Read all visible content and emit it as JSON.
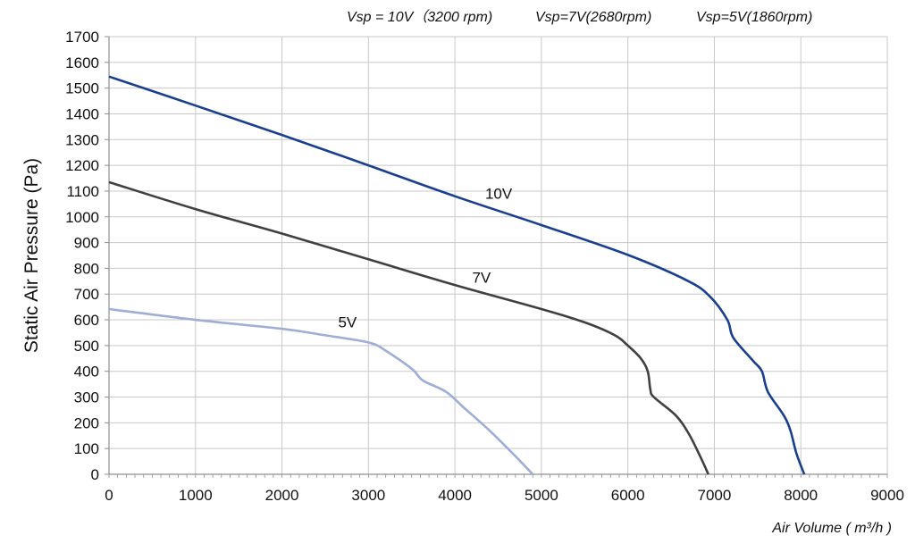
{
  "chart_data": {
    "type": "line",
    "title_parts": [
      "Vsp = 10V（3200 rpm)",
      "Vsp=7V(2680rpm)",
      "Vsp=5V(1860rpm)"
    ],
    "xlabel": "Air Volume ( m³/h )",
    "ylabel": "Static Air Pressure  (Pa)",
    "xlim": [
      0,
      9000
    ],
    "ylim": [
      0,
      1700
    ],
    "xticks": [
      "0",
      "1000",
      "2000",
      "3000",
      "4000",
      "5000",
      "6000",
      "7000",
      "8000",
      "9000"
    ],
    "yticks": [
      "0",
      "100",
      "200",
      "300",
      "400",
      "500",
      "600",
      "700",
      "800",
      "900",
      "1000",
      "1100",
      "1200",
      "1300",
      "1400",
      "1500",
      "1600",
      "1700"
    ],
    "grid": true,
    "series": [
      {
        "name": "10V",
        "color": "#1a3f8f",
        "points": [
          [
            0,
            1545
          ],
          [
            1000,
            1432
          ],
          [
            2000,
            1318
          ],
          [
            3000,
            1200
          ],
          [
            4000,
            1080
          ],
          [
            5000,
            968
          ],
          [
            6000,
            852
          ],
          [
            6700,
            750
          ],
          [
            6950,
            690
          ],
          [
            7150,
            600
          ],
          [
            7220,
            530
          ],
          [
            7450,
            440
          ],
          [
            7550,
            400
          ],
          [
            7620,
            320
          ],
          [
            7800,
            230
          ],
          [
            7880,
            170
          ],
          [
            7950,
            80
          ],
          [
            8040,
            0
          ]
        ]
      },
      {
        "name": "7V",
        "color": "#404040",
        "points": [
          [
            0,
            1135
          ],
          [
            1000,
            1030
          ],
          [
            2000,
            935
          ],
          [
            3000,
            835
          ],
          [
            4000,
            735
          ],
          [
            5000,
            642
          ],
          [
            5500,
            590
          ],
          [
            5850,
            540
          ],
          [
            6000,
            500
          ],
          [
            6150,
            450
          ],
          [
            6230,
            400
          ],
          [
            6260,
            330
          ],
          [
            6300,
            300
          ],
          [
            6550,
            230
          ],
          [
            6700,
            160
          ],
          [
            6850,
            60
          ],
          [
            6930,
            0
          ]
        ]
      },
      {
        "name": "5V",
        "color": "#9eaed6",
        "points": [
          [
            0,
            642
          ],
          [
            1000,
            600
          ],
          [
            2000,
            565
          ],
          [
            2500,
            540
          ],
          [
            3000,
            512
          ],
          [
            3200,
            480
          ],
          [
            3500,
            410
          ],
          [
            3580,
            380
          ],
          [
            3650,
            360
          ],
          [
            3900,
            320
          ],
          [
            4100,
            260
          ],
          [
            4400,
            170
          ],
          [
            4700,
            70
          ],
          [
            4900,
            0
          ]
        ]
      }
    ],
    "annotations": [
      {
        "text": "10V",
        "x": 4350,
        "y": 1070
      },
      {
        "text": "7V",
        "x": 4200,
        "y": 745
      },
      {
        "text": "5V",
        "x": 2650,
        "y": 570
      }
    ]
  }
}
